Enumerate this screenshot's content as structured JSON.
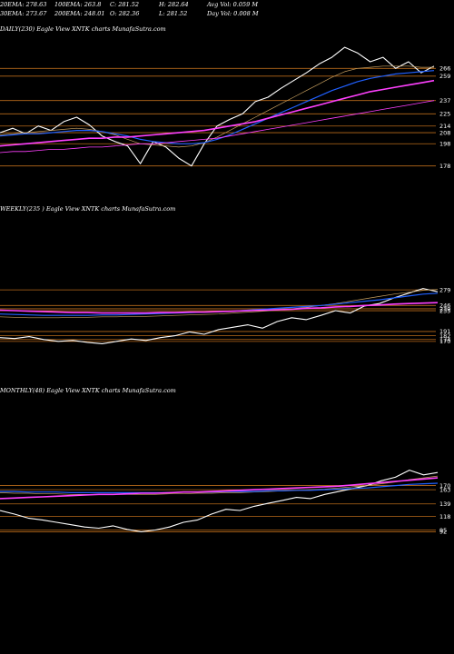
{
  "header": {
    "row1": [
      "20EMA: 278.63",
      "100EMA: 263.8",
      "C: 281.52",
      "H: 282.64",
      "Avg Vol: 0.059 M"
    ],
    "row2": [
      "30EMA: 273.67",
      "200EMA: 248.01",
      "O: 282.36",
      "L: 281.52",
      "Day Vol: 0.008 M"
    ]
  },
  "colors": {
    "price": "#ffffff",
    "ema_short": "#c8a060",
    "ema_mid": "#2060ff",
    "ema_long": "#ff40ff",
    "level_line": "#b86a1a"
  },
  "chart_data": [
    {
      "type": "line",
      "title": "DAILY(230) Eagle  View XNTK charts MunafaSutra.com",
      "levels": [
        259,
        266,
        237,
        225,
        214,
        208,
        198,
        178
      ],
      "series": [
        {
          "values": [
            208,
            212,
            207,
            214,
            210,
            218,
            222,
            215,
            205,
            200,
            196,
            180,
            200,
            195,
            185,
            178,
            198,
            214,
            220,
            225,
            236,
            240,
            248,
            255,
            262,
            270,
            276,
            285,
            280,
            272,
            276,
            266,
            272,
            262,
            268
          ]
        },
        {
          "values": [
            206,
            207,
            208,
            209,
            210,
            211,
            212,
            211,
            209,
            206,
            202,
            198,
            197,
            196,
            195,
            196,
            199,
            204,
            210,
            216,
            222,
            228,
            234,
            240,
            246,
            252,
            258,
            263,
            266,
            267,
            268,
            268,
            268,
            267,
            267
          ]
        },
        {
          "values": [
            205,
            206,
            207,
            207,
            208,
            209,
            210,
            210,
            209,
            207,
            205,
            202,
            200,
            199,
            198,
            198,
            199,
            202,
            206,
            211,
            216,
            221,
            226,
            231,
            236,
            241,
            246,
            250,
            254,
            257,
            259,
            261,
            262,
            263,
            264
          ]
        },
        {
          "values": [
            196,
            197,
            198,
            199,
            200,
            201,
            202,
            203,
            203,
            204,
            204,
            205,
            206,
            207,
            208,
            209,
            210,
            212,
            214,
            216,
            218,
            221,
            224,
            227,
            230,
            233,
            236,
            239,
            242,
            245,
            247,
            249,
            251,
            253,
            255
          ]
        },
        {
          "values": [
            190,
            191,
            191,
            192,
            193,
            193,
            194,
            195,
            195,
            196,
            197,
            198,
            198,
            199,
            200,
            201,
            202,
            203,
            205,
            207,
            209,
            211,
            213,
            215,
            217,
            219,
            221,
            223,
            225,
            227,
            229,
            231,
            233,
            235,
            237
          ]
        }
      ]
    },
    {
      "type": "line",
      "title": "WEEKLY(235          ) Eagle  View XNTK charts MunafaSutra.com",
      "levels": [
        279,
        246,
        239,
        235,
        191,
        182,
        174,
        170
      ],
      "series": [
        {
          "values": [
            178,
            176,
            180,
            174,
            170,
            172,
            168,
            165,
            170,
            175,
            172,
            178,
            182,
            190,
            185,
            195,
            200,
            205,
            198,
            212,
            220,
            216,
            225,
            235,
            230,
            245,
            250,
            262,
            272,
            282,
            275
          ]
        },
        {
          "values": [
            222,
            221,
            220,
            220,
            220,
            221,
            221,
            222,
            222,
            223,
            223,
            224,
            225,
            226,
            227,
            228,
            230,
            232,
            234,
            236,
            239,
            242,
            246,
            250,
            255,
            260,
            265,
            270,
            274,
            278,
            280
          ]
        },
        {
          "values": [
            228,
            227,
            226,
            225,
            225,
            225,
            225,
            226,
            226,
            227,
            228,
            229,
            230,
            231,
            232,
            233,
            234,
            236,
            238,
            240,
            242,
            244,
            246,
            249,
            252,
            255,
            258,
            262,
            266,
            270,
            272
          ]
        },
        {
          "values": [
            236,
            235,
            234,
            233,
            232,
            231,
            231,
            230,
            230,
            230,
            230,
            231,
            231,
            232,
            232,
            233,
            234,
            235,
            236,
            237,
            238,
            240,
            241,
            243,
            244,
            246,
            247,
            249,
            250,
            251,
            252
          ]
        }
      ]
    },
    {
      "type": "line",
      "title": "MONTHLY(48) Eagle  View XNTK charts MunafaSutra.com",
      "levels": [
        170,
        163,
        139,
        118,
        95,
        92
      ],
      "series": [
        {
          "values": [
            128,
            122,
            115,
            112,
            108,
            104,
            100,
            98,
            102,
            96,
            92,
            95,
            100,
            108,
            112,
            122,
            130,
            128,
            135,
            140,
            145,
            150,
            148,
            155,
            160,
            165,
            170,
            178,
            184,
            196,
            188,
            192
          ]
        },
        {
          "values": [
            158,
            157,
            157,
            156,
            156,
            155,
            155,
            155,
            155,
            155,
            155,
            155,
            156,
            156,
            157,
            157,
            158,
            158,
            159,
            160,
            161,
            162,
            163,
            164,
            166,
            168,
            170,
            173,
            176,
            180,
            183,
            186
          ]
        },
        {
          "values": [
            160,
            160,
            159,
            159,
            159,
            158,
            158,
            158,
            158,
            158,
            158,
            158,
            158,
            159,
            159,
            159,
            160,
            160,
            160,
            161,
            161,
            162,
            162,
            163,
            164,
            165,
            166,
            168,
            170,
            172,
            173,
            174
          ]
        },
        {
          "values": [
            148,
            149,
            150,
            151,
            152,
            153,
            154,
            155,
            155,
            156,
            157,
            157,
            158,
            159,
            159,
            160,
            161,
            162,
            163,
            164,
            165,
            166,
            167,
            168,
            169,
            171,
            173,
            175,
            177,
            179,
            181,
            183
          ]
        }
      ]
    }
  ]
}
